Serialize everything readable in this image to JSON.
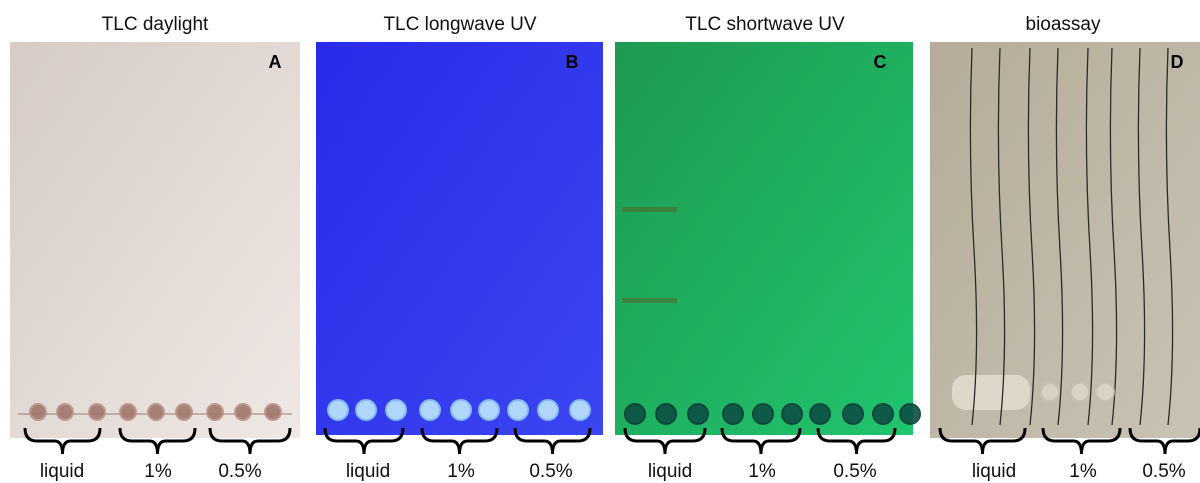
{
  "panels": [
    {
      "title": "TLC daylight",
      "letter": "A",
      "groups": [
        "liquid",
        "1%",
        "0.5%"
      ]
    },
    {
      "title": "TLC longwave UV",
      "letter": "B",
      "groups": [
        "liquid",
        "1%",
        "0.5%"
      ]
    },
    {
      "title": "TLC shortwave UV",
      "letter": "C",
      "groups": [
        "liquid",
        "1%",
        "0.5%"
      ]
    },
    {
      "title": "bioassay",
      "letter": "D",
      "groups": [
        "liquid",
        "1%",
        "0.5%"
      ]
    }
  ]
}
